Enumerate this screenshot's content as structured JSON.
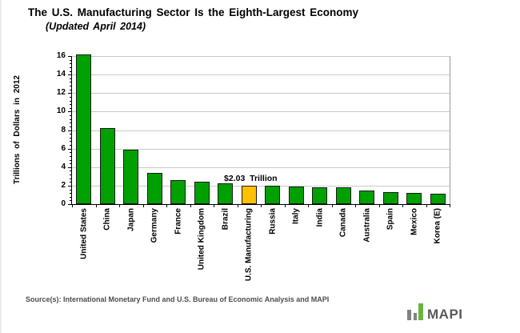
{
  "header": {
    "title": "The U.S. Manufacturing Sector Is the Eighth-Largest Economy",
    "subtitle": "(Updated April 2014)"
  },
  "footer": {
    "source": "Source(s): International Monetary Fund and U.S. Bureau of Economic Analysis and MAPI",
    "logo_text": "MAPI"
  },
  "colors": {
    "bar_green": "#00A000",
    "bar_highlight_orange": "#FFC000",
    "bar_border": "#1a1a1a",
    "gridline": "#c9c9c9",
    "plot_right_border": "#9a9a9a",
    "axis": "#000000",
    "source_text": "#4d4d4f",
    "logo_gray": "#808285",
    "logo_green": "#6CB33F",
    "logo_text": "#58595B"
  },
  "chart_data": {
    "type": "bar",
    "title": "The U.S. Manufacturing Sector Is the Eighth-Largest Economy",
    "subtitle": "(Updated April 2014)",
    "xlabel": "",
    "ylabel": "Trillions of Dollars in 2012",
    "ylim": [
      0,
      16
    ],
    "ytick_interval": 2,
    "yticks": [
      0,
      2,
      4,
      6,
      8,
      10,
      12,
      14,
      16
    ],
    "minor_tick_interval": 0.4,
    "grid": "horizontal-major-only",
    "legend": "none",
    "categories": [
      "United States",
      "China",
      "Japan",
      "Germany",
      "France",
      "United Kingdom",
      "Brazil",
      "U.S. Manufacturing",
      "Russia",
      "Italy",
      "India",
      "Canada",
      "Australia",
      "Spain",
      "Mexico",
      "Korea (E)"
    ],
    "values": [
      16.2,
      8.2,
      5.9,
      3.4,
      2.6,
      2.45,
      2.25,
      2.03,
      2.0,
      1.95,
      1.82,
      1.78,
      1.5,
      1.3,
      1.2,
      1.1
    ],
    "highlight_index": 7,
    "annotation": {
      "text": "$2.03  Trillion",
      "target": "U.S. Manufacturing"
    }
  }
}
